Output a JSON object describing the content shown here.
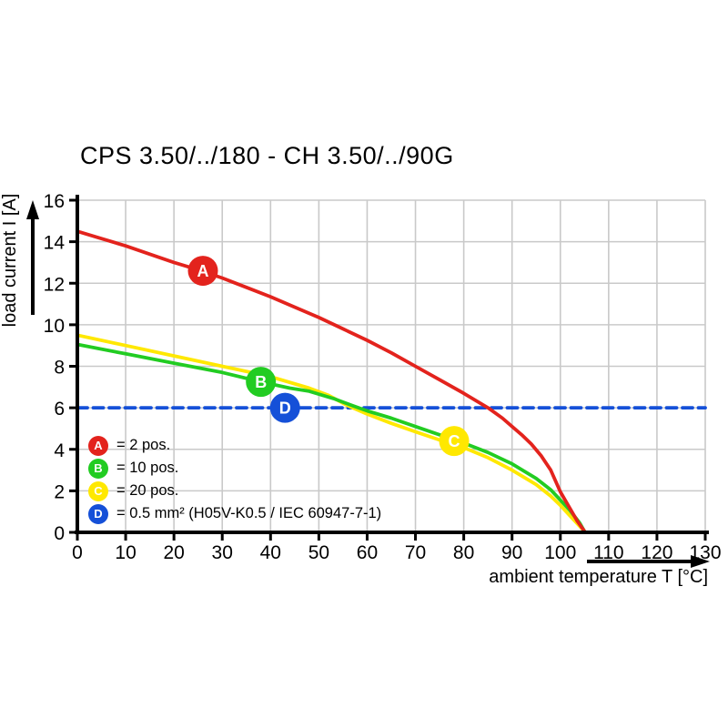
{
  "title": "CPS 3.50/../180 - CH 3.50/../90G",
  "x_axis": {
    "label": "ambient temperature T [°C]",
    "min": 0,
    "max": 130,
    "tick_step": 10
  },
  "y_axis": {
    "label": "load current I [A]",
    "min": 0,
    "max": 16,
    "tick_step": 2
  },
  "colors": {
    "grid": "#c9c9c9",
    "axis": "#000000",
    "red": "#e3231d",
    "green": "#22cc22",
    "yellow": "#ffe800",
    "blue": "#1550d8"
  },
  "legend": [
    {
      "letter": "A",
      "color": "#e3231d",
      "text": "= 2 pos."
    },
    {
      "letter": "B",
      "color": "#22cc22",
      "text": "= 10 pos."
    },
    {
      "letter": "C",
      "color": "#ffe800",
      "text": "= 20 pos."
    },
    {
      "letter": "D",
      "color": "#1550d8",
      "text": "= 0.5 mm² (H05V-K0.5 / IEC 60947-7-1)"
    }
  ],
  "chart_data": {
    "type": "line",
    "title": "CPS 3.50/../180 - CH 3.50/../90G",
    "xlabel": "ambient temperature T [°C]",
    "ylabel": "load current I [A]",
    "xlim": [
      0,
      130
    ],
    "ylim": [
      0,
      16
    ],
    "grid": true,
    "legend_position": "inside-lower-left",
    "series": [
      {
        "name": "D = 0.5 mm² (H05V-K0.5 / IEC 60947-7-1)",
        "color": "#1550d8",
        "style": "dashed",
        "points": [
          [
            0,
            6
          ],
          [
            130,
            6
          ]
        ]
      },
      {
        "name": "C = 20 pos.",
        "color": "#ffe800",
        "style": "solid",
        "points": [
          [
            0,
            9.5
          ],
          [
            10,
            9.0
          ],
          [
            20,
            8.5
          ],
          [
            30,
            8.0
          ],
          [
            40,
            7.5
          ],
          [
            48,
            6.95
          ],
          [
            52,
            6.6
          ],
          [
            56,
            6.1
          ],
          [
            60,
            5.7
          ],
          [
            65,
            5.25
          ],
          [
            70,
            4.85
          ],
          [
            75,
            4.45
          ],
          [
            78,
            4.28
          ],
          [
            80,
            4.08
          ],
          [
            85,
            3.6
          ],
          [
            90,
            3.0
          ],
          [
            95,
            2.3
          ],
          [
            98,
            1.75
          ],
          [
            100,
            1.3
          ],
          [
            102,
            0.8
          ],
          [
            104,
            0.3
          ],
          [
            105,
            0.05
          ]
        ]
      },
      {
        "name": "B = 10 pos.",
        "color": "#22cc22",
        "style": "solid",
        "points": [
          [
            0,
            9.05
          ],
          [
            10,
            8.6
          ],
          [
            20,
            8.15
          ],
          [
            30,
            7.7
          ],
          [
            38,
            7.25
          ],
          [
            44,
            6.95
          ],
          [
            48,
            6.8
          ],
          [
            53,
            6.45
          ],
          [
            57,
            6.1
          ],
          [
            60,
            5.85
          ],
          [
            65,
            5.5
          ],
          [
            70,
            5.1
          ],
          [
            75,
            4.7
          ],
          [
            78,
            4.45
          ],
          [
            80,
            4.3
          ],
          [
            85,
            3.85
          ],
          [
            90,
            3.3
          ],
          [
            95,
            2.6
          ],
          [
            98,
            2.05
          ],
          [
            100,
            1.55
          ],
          [
            102,
            1.05
          ],
          [
            104,
            0.45
          ],
          [
            105,
            0.05
          ]
        ]
      },
      {
        "name": "A = 2 pos.",
        "color": "#e3231d",
        "style": "solid",
        "points": [
          [
            0,
            14.5
          ],
          [
            5,
            14.15
          ],
          [
            10,
            13.8
          ],
          [
            15,
            13.4
          ],
          [
            20,
            13.0
          ],
          [
            25,
            12.65
          ],
          [
            30,
            12.25
          ],
          [
            35,
            11.8
          ],
          [
            40,
            11.35
          ],
          [
            45,
            10.85
          ],
          [
            50,
            10.35
          ],
          [
            55,
            9.8
          ],
          [
            60,
            9.25
          ],
          [
            65,
            8.65
          ],
          [
            70,
            8.0
          ],
          [
            75,
            7.35
          ],
          [
            80,
            6.7
          ],
          [
            85,
            6.0
          ],
          [
            88,
            5.5
          ],
          [
            90,
            5.1
          ],
          [
            92,
            4.7
          ],
          [
            94,
            4.25
          ],
          [
            96,
            3.7
          ],
          [
            98,
            3.0
          ],
          [
            100,
            1.95
          ],
          [
            102,
            1.15
          ],
          [
            103.5,
            0.55
          ],
          [
            105,
            0.05
          ]
        ]
      }
    ],
    "markers": [
      {
        "letter": "A",
        "x": 26,
        "y": 12.6,
        "color": "#e3231d"
      },
      {
        "letter": "B",
        "x": 38,
        "y": 7.25,
        "color": "#22cc22"
      },
      {
        "letter": "C",
        "x": 78,
        "y": 4.4,
        "color": "#ffe800"
      },
      {
        "letter": "D",
        "x": 43,
        "y": 6.0,
        "color": "#1550d8"
      }
    ]
  }
}
